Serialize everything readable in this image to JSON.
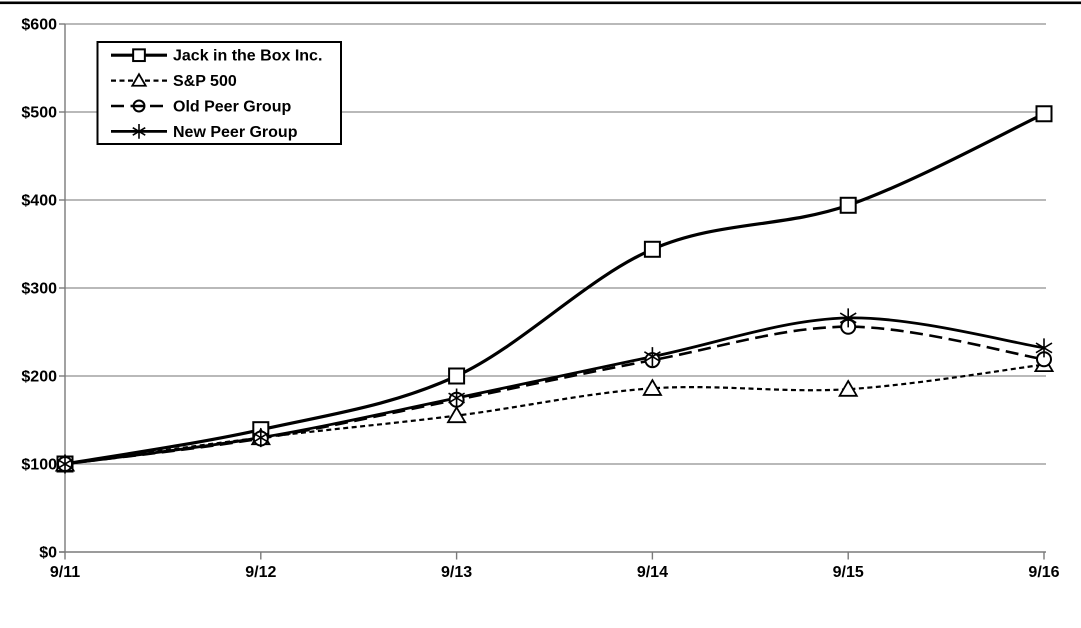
{
  "page": {
    "background_color": "#ffffff",
    "top_rule_color": "#000000"
  },
  "chart_data": {
    "type": "line",
    "title": "",
    "xlabel": "",
    "ylabel": "",
    "categories": [
      "9/11",
      "9/12",
      "9/13",
      "9/14",
      "9/15",
      "9/16"
    ],
    "series": [
      {
        "name": "Jack in the Box Inc.",
        "marker": "square",
        "line_style": "solid",
        "values": [
          100,
          139,
          200,
          344,
          394,
          498
        ]
      },
      {
        "name": "S&P 500",
        "marker": "triangle",
        "line_style": "short-dash",
        "values": [
          100,
          130,
          155,
          186,
          185,
          213
        ]
      },
      {
        "name": "Old Peer Group",
        "marker": "circle",
        "line_style": "long-dash",
        "values": [
          100,
          129,
          173,
          218,
          256,
          219
        ]
      },
      {
        "name": "New Peer Group",
        "marker": "asterisk",
        "line_style": "solid",
        "values": [
          100,
          130,
          175,
          222,
          266,
          232
        ]
      }
    ],
    "x_tick_labels": [
      "9/11",
      "9/12",
      "9/13",
      "9/14",
      "9/15",
      "9/16"
    ],
    "y_tick_labels": [
      "$0",
      "$100",
      "$200",
      "$300",
      "$400",
      "$500",
      "$600"
    ],
    "ylim": [
      0,
      600
    ],
    "y_step": 100,
    "grid": "horizontal",
    "smoothed_lines": true,
    "legend_position": "top-left-inside",
    "series_color": "#000000",
    "grid_color": "#8f8f8f",
    "axis_color": "#7a7a7a",
    "label_color": "#000000",
    "marker_fill": "#ffffff",
    "legend_border_color": "#000000",
    "legend_fill": "#ffffff"
  }
}
